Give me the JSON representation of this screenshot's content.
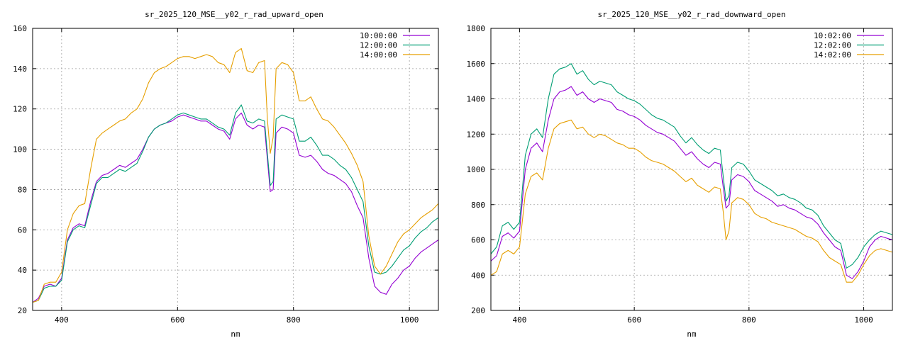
{
  "chart_data": [
    {
      "type": "line",
      "title": "sr_2025_120_MSE__y02_r_rad_upward_open",
      "xlabel": "nm",
      "ylabel": "",
      "xlim": [
        350,
        1050
      ],
      "ylim": [
        20,
        160
      ],
      "xticks": [
        400,
        600,
        800,
        1000
      ],
      "yticks": [
        20,
        40,
        60,
        80,
        100,
        120,
        140,
        160
      ],
      "grid": true,
      "legend_position": "top-right",
      "x": [
        350,
        360,
        370,
        380,
        390,
        400,
        410,
        420,
        430,
        440,
        450,
        460,
        470,
        480,
        490,
        500,
        510,
        520,
        530,
        540,
        550,
        560,
        570,
        580,
        590,
        600,
        610,
        620,
        630,
        640,
        650,
        660,
        670,
        680,
        690,
        700,
        710,
        720,
        730,
        740,
        750,
        755,
        760,
        765,
        770,
        780,
        790,
        800,
        810,
        820,
        830,
        840,
        850,
        860,
        870,
        880,
        890,
        900,
        910,
        920,
        930,
        940,
        950,
        960,
        970,
        980,
        990,
        1000,
        1010,
        1020,
        1030,
        1040,
        1050
      ],
      "series": [
        {
          "name": "10:00:00",
          "color": "#9400d3",
          "values": [
            24,
            26,
            32,
            33,
            32,
            36,
            55,
            61,
            63,
            62,
            74,
            84,
            87,
            88,
            90,
            92,
            91,
            93,
            95,
            100,
            106,
            110,
            112,
            113,
            114,
            116,
            117,
            116,
            115,
            114,
            114,
            112,
            110,
            109,
            105,
            115,
            118,
            112,
            110,
            112,
            111,
            95,
            79,
            80,
            108,
            111,
            110,
            108,
            97,
            96,
            97,
            94,
            90,
            88,
            87,
            85,
            83,
            79,
            72,
            66,
            46,
            32,
            29,
            28,
            33,
            36,
            40,
            42,
            46,
            49,
            51,
            53,
            55
          ]
        },
        {
          "name": "12:00:00",
          "color": "#009e73",
          "values": [
            24,
            25,
            31,
            32,
            32,
            35,
            54,
            60,
            62,
            61,
            72,
            83,
            86,
            86,
            88,
            90,
            89,
            91,
            93,
            99,
            106,
            110,
            112,
            113,
            115,
            117,
            118,
            117,
            116,
            115,
            115,
            113,
            111,
            110,
            107,
            118,
            122,
            114,
            113,
            115,
            114,
            98,
            82,
            84,
            115,
            117,
            116,
            115,
            104,
            104,
            106,
            102,
            97,
            97,
            95,
            92,
            90,
            86,
            80,
            74,
            52,
            39,
            38,
            39,
            42,
            46,
            50,
            52,
            56,
            59,
            61,
            64,
            66
          ]
        },
        {
          "name": "14:00:00",
          "color": "#e69f00",
          "values": [
            24,
            25,
            33,
            34,
            34,
            39,
            60,
            68,
            72,
            73,
            90,
            105,
            108,
            110,
            112,
            114,
            115,
            118,
            120,
            125,
            133,
            138,
            140,
            141,
            143,
            145,
            146,
            146,
            145,
            146,
            147,
            146,
            143,
            142,
            138,
            148,
            150,
            139,
            138,
            143,
            144,
            115,
            98,
            106,
            140,
            143,
            142,
            138,
            124,
            124,
            126,
            120,
            115,
            114,
            111,
            107,
            103,
            98,
            92,
            84,
            57,
            42,
            38,
            42,
            48,
            54,
            58,
            60,
            63,
            66,
            68,
            70,
            73
          ]
        }
      ]
    },
    {
      "type": "line",
      "title": "sr_2025_120_MSE__y02_r_rad_downward_open",
      "xlabel": "nm",
      "ylabel": "",
      "xlim": [
        350,
        1050
      ],
      "ylim": [
        200,
        1800
      ],
      "xticks": [
        400,
        600,
        800,
        1000
      ],
      "yticks": [
        200,
        400,
        600,
        800,
        1000,
        1200,
        1400,
        1600,
        1800
      ],
      "grid": true,
      "legend_position": "top-right",
      "x": [
        350,
        360,
        370,
        380,
        390,
        400,
        410,
        420,
        430,
        440,
        450,
        460,
        470,
        480,
        490,
        500,
        510,
        520,
        530,
        540,
        550,
        560,
        570,
        580,
        590,
        600,
        610,
        620,
        630,
        640,
        650,
        660,
        670,
        680,
        690,
        700,
        710,
        720,
        730,
        740,
        750,
        755,
        760,
        765,
        770,
        780,
        790,
        800,
        810,
        820,
        830,
        840,
        850,
        860,
        870,
        880,
        890,
        900,
        910,
        920,
        930,
        940,
        950,
        960,
        970,
        980,
        990,
        1000,
        1010,
        1020,
        1030,
        1040,
        1050
      ],
      "series": [
        {
          "name": "10:02:00",
          "color": "#9400d3",
          "values": [
            480,
            510,
            620,
            640,
            610,
            650,
            1000,
            1120,
            1150,
            1100,
            1280,
            1400,
            1440,
            1450,
            1470,
            1420,
            1440,
            1400,
            1380,
            1400,
            1390,
            1380,
            1340,
            1330,
            1310,
            1300,
            1280,
            1250,
            1230,
            1210,
            1200,
            1180,
            1160,
            1120,
            1080,
            1100,
            1060,
            1030,
            1010,
            1040,
            1030,
            900,
            780,
            800,
            940,
            970,
            960,
            930,
            880,
            860,
            840,
            820,
            790,
            800,
            780,
            770,
            750,
            730,
            720,
            690,
            640,
            600,
            560,
            540,
            400,
            380,
            420,
            480,
            560,
            600,
            620,
            610,
            600
          ]
        },
        {
          "name": "12:02:00",
          "color": "#009e73",
          "values": [
            520,
            560,
            680,
            700,
            660,
            700,
            1080,
            1200,
            1230,
            1180,
            1400,
            1540,
            1570,
            1580,
            1600,
            1540,
            1560,
            1510,
            1480,
            1500,
            1490,
            1480,
            1440,
            1420,
            1400,
            1390,
            1370,
            1340,
            1310,
            1290,
            1280,
            1260,
            1240,
            1190,
            1150,
            1180,
            1140,
            1110,
            1090,
            1120,
            1110,
            960,
            820,
            850,
            1010,
            1040,
            1030,
            990,
            940,
            920,
            900,
            880,
            850,
            860,
            840,
            830,
            810,
            780,
            770,
            740,
            680,
            640,
            600,
            580,
            440,
            460,
            500,
            560,
            600,
            630,
            650,
            640,
            630
          ]
        },
        {
          "name": "14:02:00",
          "color": "#e69f00",
          "values": [
            400,
            420,
            520,
            540,
            520,
            560,
            860,
            960,
            980,
            940,
            1120,
            1230,
            1260,
            1270,
            1280,
            1230,
            1240,
            1200,
            1180,
            1200,
            1190,
            1170,
            1150,
            1140,
            1120,
            1120,
            1100,
            1070,
            1050,
            1040,
            1030,
            1010,
            990,
            960,
            930,
            950,
            910,
            890,
            870,
            900,
            890,
            760,
            600,
            650,
            810,
            840,
            830,
            800,
            750,
            730,
            720,
            700,
            690,
            680,
            670,
            660,
            640,
            620,
            610,
            590,
            540,
            500,
            480,
            460,
            360,
            360,
            400,
            460,
            510,
            540,
            550,
            540,
            530
          ]
        }
      ]
    }
  ]
}
